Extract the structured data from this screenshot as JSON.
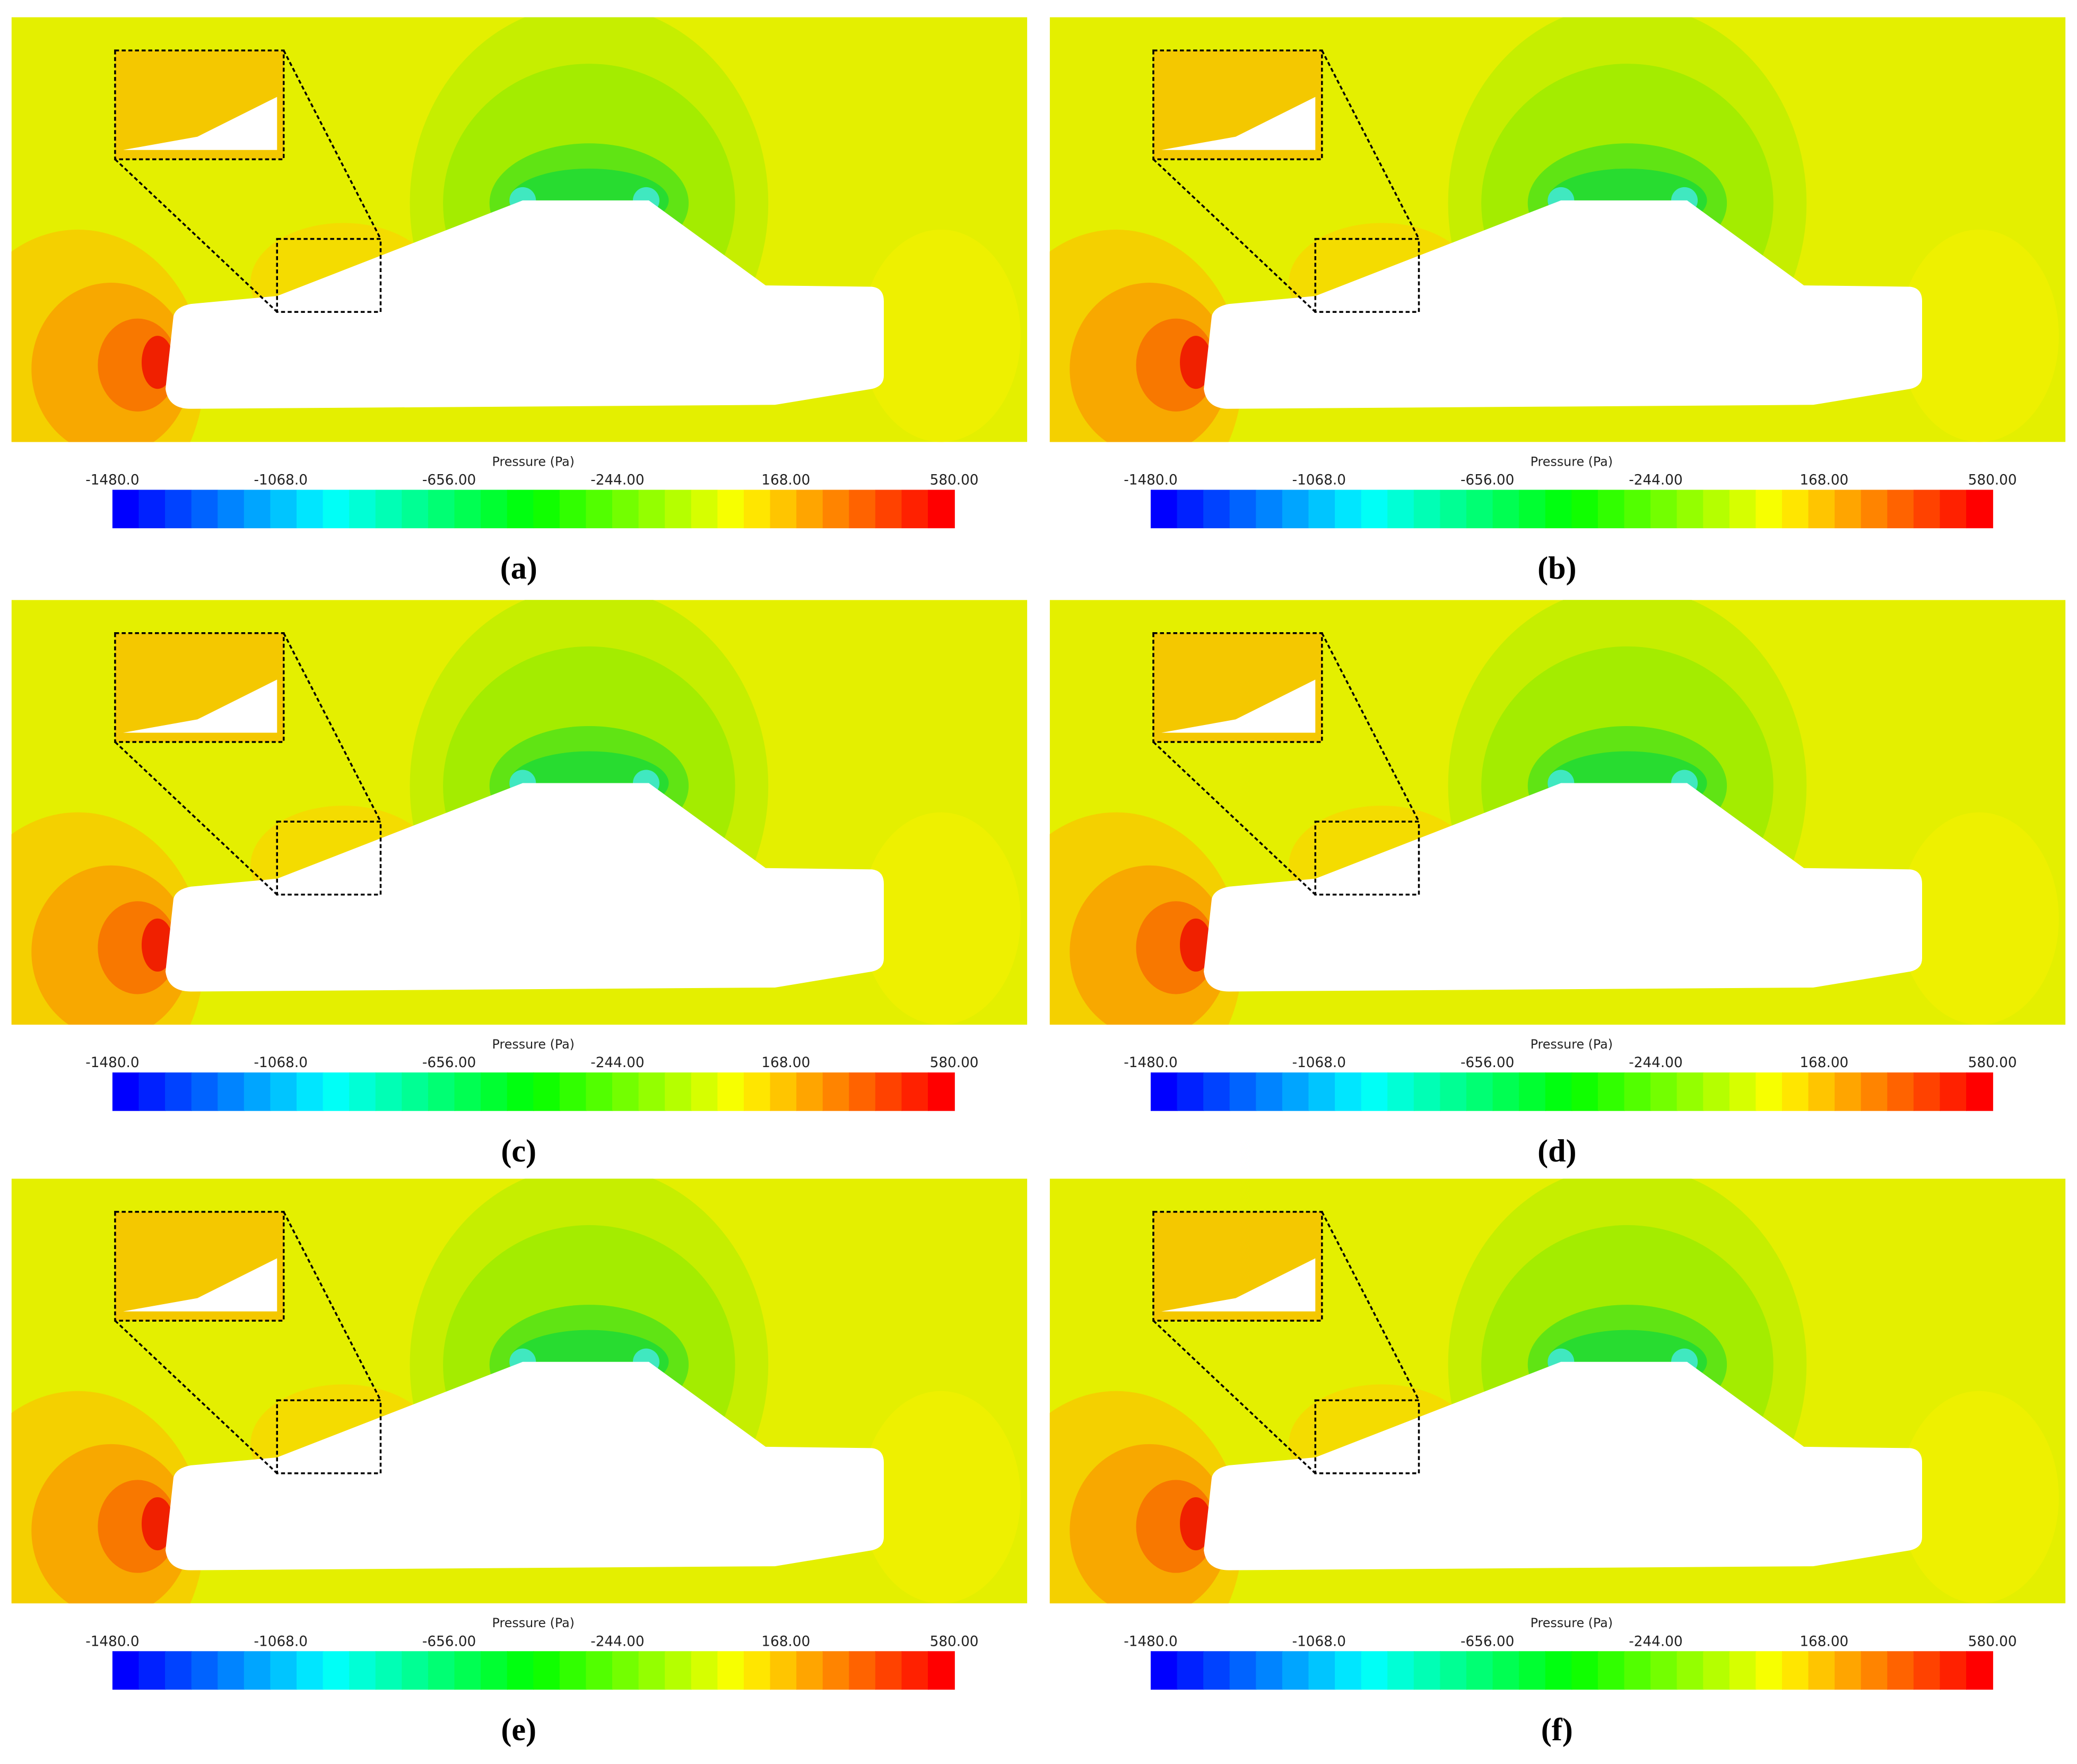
{
  "panels": [
    {
      "label": "(a)",
      "colorbar": {
        "title": "Pressure (Pa)",
        "ticks": [
          "-1480.0",
          "-1068.0",
          "-656.00",
          "-244.00",
          "168.00",
          "580.00"
        ]
      }
    },
    {
      "label": "(b)",
      "colorbar": {
        "title": "Pressure (Pa)",
        "ticks": [
          "-1480.0",
          "-1068.0",
          "-656.00",
          "-244.00",
          "168.00",
          "580.00"
        ]
      }
    },
    {
      "label": "(c)",
      "colorbar": {
        "title": "Pressure (Pa)",
        "ticks": [
          "-1480.0",
          "-1068.0",
          "-656.00",
          "-244.00",
          "168.00",
          "580.00"
        ]
      }
    },
    {
      "label": "(d)",
      "colorbar": {
        "title": "Pressure (Pa)",
        "ticks": [
          "-1480.0",
          "-1068.0",
          "-656.00",
          "-244.00",
          "168.00",
          "580.00"
        ]
      }
    },
    {
      "label": "(e)",
      "colorbar": {
        "title": "Pressure (Pa)",
        "ticks": [
          "-1480.0",
          "-1068.0",
          "-656.00",
          "-244.00",
          "168.00",
          "580.00"
        ]
      }
    },
    {
      "label": "(f)",
      "colorbar": {
        "title": "Pressure (Pa)",
        "ticks": [
          "-1480.0",
          "-1068.0",
          "-656.00",
          "-244.00",
          "168.00",
          "580.00"
        ]
      }
    }
  ]
}
